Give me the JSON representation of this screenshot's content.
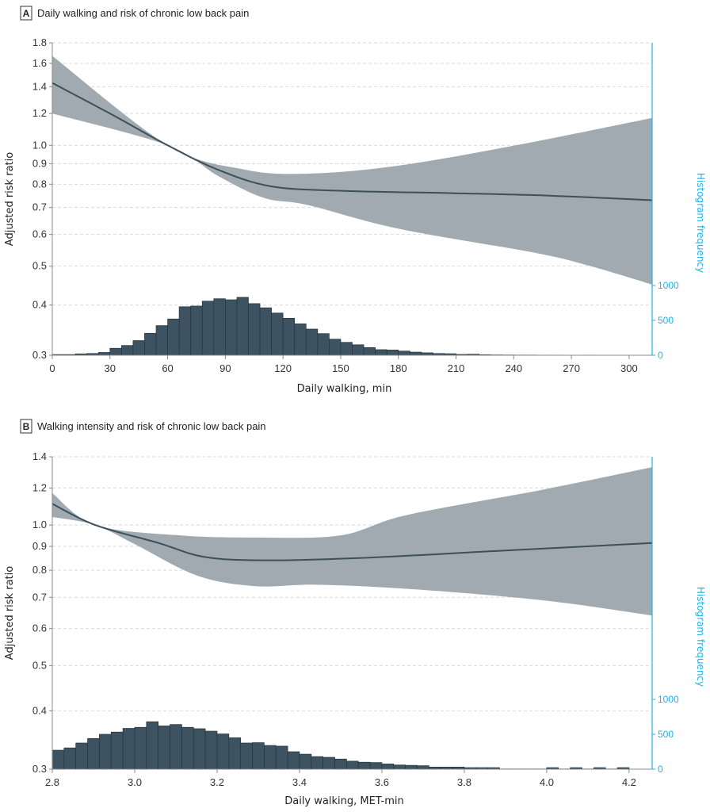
{
  "colors": {
    "band": "#a0aab0",
    "line": "#3d4f5a",
    "bars": "#3e5361",
    "secondary_axis": "#1fb3e6",
    "grid": "#d9d9d9"
  },
  "chart_data": [
    {
      "panel_label": "A",
      "title": "Daily walking and risk of chronic low back pain",
      "type": "line",
      "xlabel": "Daily walking, min",
      "ylabel": "Adjusted risk ratio",
      "y2label": "Histogram frequency",
      "xlim": [
        0,
        312
      ],
      "ylim": [
        0.3,
        1.8
      ],
      "yscale": "log",
      "xticks": [
        "0",
        "30",
        "60",
        "90",
        "120",
        "150",
        "180",
        "210",
        "240",
        "270",
        "300"
      ],
      "yticks": [
        "0.3",
        "0.4",
        "0.5",
        "0.6",
        "0.7",
        "0.8",
        "0.9",
        "1.0",
        "1.2",
        "1.4",
        "1.6",
        "1.8"
      ],
      "y2ticks": [
        "0",
        "500",
        "1000"
      ],
      "grid": true,
      "series": [
        {
          "role": "estimate",
          "x": [
            0,
            30,
            60,
            86,
            114,
            152,
            208,
            256,
            312
          ],
          "y": [
            1.43,
            1.2,
            1.0,
            0.87,
            0.79,
            0.77,
            0.76,
            0.75,
            0.73
          ]
        },
        {
          "role": "upper_ci",
          "x": [
            0,
            60,
            100,
            133,
            180,
            241,
            312
          ],
          "y": [
            1.67,
            1.0,
            0.87,
            0.85,
            0.89,
            1.0,
            1.17
          ]
        },
        {
          "role": "lower_ci",
          "x": [
            0,
            60,
            86,
            110,
            133,
            180,
            251,
            280,
            312
          ],
          "y": [
            1.2,
            1.0,
            0.84,
            0.74,
            0.71,
            0.62,
            0.54,
            0.5,
            0.45
          ]
        }
      ],
      "histogram": {
        "bin_start": 0,
        "bin_width": 6,
        "counts": [
          10,
          10,
          20,
          25,
          40,
          100,
          140,
          210,
          315,
          425,
          520,
          695,
          705,
          775,
          810,
          795,
          830,
          740,
          680,
          605,
          530,
          450,
          375,
          310,
          230,
          185,
          150,
          110,
          80,
          75,
          60,
          45,
          35,
          25,
          22,
          12,
          15,
          8,
          5,
          4,
          3,
          3,
          2,
          2,
          1,
          1,
          2,
          1,
          1,
          1,
          0,
          0
        ]
      }
    },
    {
      "panel_label": "B",
      "title": "Walking intensity and risk of chronic low back pain",
      "type": "line",
      "xlabel": "Daily walking, MET-min",
      "ylabel": "Adjusted risk ratio",
      "y2label": "Histogram frequency",
      "xlim": [
        2.8,
        4.256
      ],
      "ylim": [
        0.3,
        1.4
      ],
      "yscale": "log",
      "xticks": [
        "2.8",
        "3.0",
        "3.2",
        "3.4",
        "3.6",
        "3.8",
        "4.0",
        "4.2"
      ],
      "yticks": [
        "0.3",
        "0.4",
        "0.5",
        "0.6",
        "0.7",
        "0.8",
        "0.9",
        "1.0",
        "1.2",
        "1.4"
      ],
      "y2ticks": [
        "0",
        "500",
        "1000"
      ],
      "grid": true,
      "series": [
        {
          "role": "estimate",
          "x": [
            2.8,
            2.904,
            3.058,
            3.167,
            3.31,
            3.55,
            3.88,
            4.256
          ],
          "y": [
            1.11,
            1.0,
            0.915,
            0.855,
            0.84,
            0.85,
            0.88,
            0.915
          ]
        },
        {
          "role": "upper_ci",
          "x": [
            2.8,
            2.904,
            3.11,
            3.3,
            3.5,
            3.66,
            3.99,
            4.256
          ],
          "y": [
            1.17,
            1.0,
            0.95,
            0.94,
            0.95,
            1.05,
            1.19,
            1.33
          ]
        },
        {
          "role": "lower_ci",
          "x": [
            2.8,
            2.904,
            3.0,
            3.15,
            3.29,
            3.44,
            3.66,
            3.99,
            4.256
          ],
          "y": [
            1.04,
            1.0,
            0.91,
            0.78,
            0.74,
            0.745,
            0.73,
            0.69,
            0.64
          ]
        }
      ],
      "histogram": {
        "bin_start": 2.8,
        "bin_width": 0.028571,
        "counts": [
          272,
          305,
          375,
          440,
          500,
          532,
          585,
          600,
          680,
          620,
          640,
          600,
          580,
          545,
          505,
          450,
          375,
          380,
          340,
          330,
          250,
          215,
          180,
          170,
          145,
          115,
          100,
          95,
          75,
          60,
          55,
          50,
          30,
          30,
          30,
          22,
          22,
          22,
          3,
          3,
          3,
          3,
          22,
          3,
          22,
          3,
          22,
          3,
          22
        ]
      }
    }
  ]
}
